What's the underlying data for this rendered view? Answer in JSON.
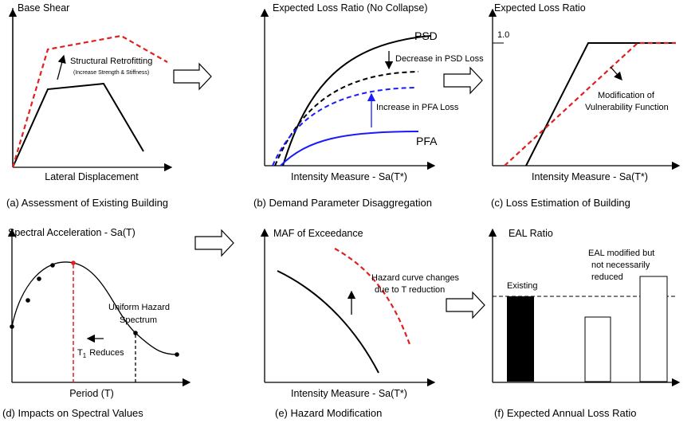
{
  "panel_a": {
    "y_label": "Base Shear",
    "x_label": "Lateral Displacement",
    "note_title": "Structural Retrofitting",
    "note_detail": "(Increase Strength & Stiffness)",
    "caption": "(a) Assessment of Existing Building"
  },
  "panel_b": {
    "y_label": "Expected Loss Ratio (No Collapse)",
    "psd_label": "PSD",
    "psd_note": "Decrease in PSD Loss",
    "pfa_note": "Increase in PFA Loss",
    "pfa_label": "PFA",
    "x_label": "Intensity Measure - Sa(T*)",
    "caption": "(b) Demand Parameter Disaggregation"
  },
  "panel_c": {
    "y_label": "Expected Loss Ratio",
    "y_tick": "1.0",
    "note_line1": "Modification of",
    "note_line2": "Vulnerability Function",
    "x_label": "Intensity Measure - Sa(T*)",
    "caption": "(c) Loss Estimation of Building"
  },
  "panel_d": {
    "y_label": "Spectral Acceleration - Sa(T)",
    "curve_line1": "Uniform Hazard",
    "curve_line2": "Spectrum",
    "period_symbol": "T",
    "period_subscript": "1",
    "period_note": "Reduces",
    "x_label": "Period (T)",
    "caption": "(d) Impacts on Spectral Values"
  },
  "panel_e": {
    "y_label": "MAF of Exceedance",
    "note_line1": "Hazard curve changes",
    "note_line2": "due to T reduction",
    "x_label": "Intensity Measure - Sa(T*)",
    "caption": "(e) Hazard Modification"
  },
  "panel_f": {
    "y_label": "EAL Ratio",
    "note_line1": "EAL modified but",
    "note_line2": "not necessarily",
    "note_line3": "reduced",
    "bar_label": "Existing",
    "caption": "(f) Expected Annual Loss Ratio"
  }
}
